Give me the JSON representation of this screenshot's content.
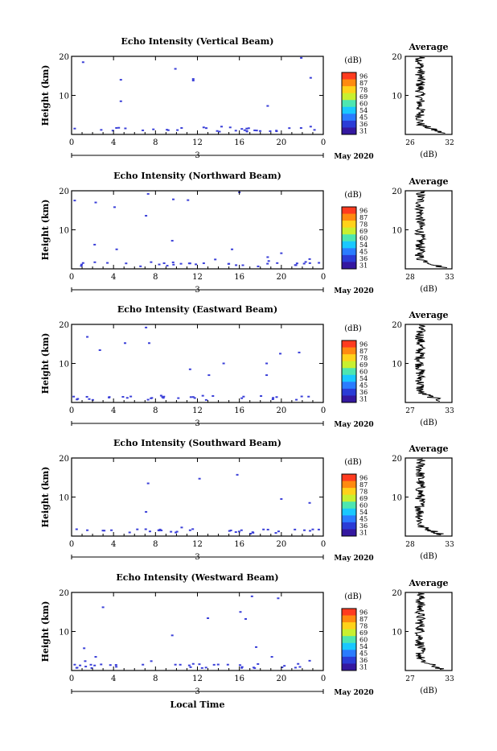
{
  "chart_data": {
    "type": "heatmap",
    "xlabel": "Local Time",
    "x_ticks": [
      "0",
      "4",
      "8",
      "12",
      "16",
      "20",
      "0"
    ],
    "xlim": [
      0,
      24
    ],
    "date_marker": "3",
    "month_label": "May 2020",
    "ylabel": "Height (km)",
    "y_ticks": [
      "10",
      "20"
    ],
    "ylim": [
      0,
      20
    ],
    "colorbar": {
      "unit": "(dB)",
      "ticks": [
        "96",
        "87",
        "78",
        "69",
        "60",
        "54",
        "45",
        "36",
        "31"
      ],
      "colors": [
        "#ff3b1f",
        "#ff8a10",
        "#ffd21a",
        "#c8f030",
        "#4de6b0",
        "#19c8ff",
        "#2a7cff",
        "#2a3cd6",
        "#3418a0"
      ]
    },
    "panels": [
      {
        "title": "Echo Intensity (Vertical Beam)",
        "avg_title": "Average",
        "avg_xlabel": "(dB)",
        "avg_ticks": [
          "26",
          "32"
        ],
        "avg_xlim": [
          26,
          32
        ],
        "echoes": [
          [
            0.3,
            1.5
          ],
          [
            1.1,
            18.5
          ],
          [
            4.5,
            1.7
          ],
          [
            4.7,
            14
          ],
          [
            4.7,
            8.5
          ],
          [
            7.8,
            1.3
          ],
          [
            9.9,
            16.8
          ],
          [
            11.6,
            14.2
          ],
          [
            11.6,
            13.8
          ],
          [
            12.6,
            1.8
          ],
          [
            14.3,
            2.0
          ],
          [
            16.7,
            1.5
          ],
          [
            18.7,
            7.3
          ],
          [
            21.9,
            19.6
          ],
          [
            22.8,
            14.5
          ],
          [
            22.8,
            2.0
          ]
        ]
      },
      {
        "title": "Echo Intensity (Northward Beam)",
        "avg_title": "Average",
        "avg_xlabel": "(dB)",
        "avg_ticks": [
          "28",
          "33"
        ],
        "avg_xlim": [
          28,
          33
        ],
        "echoes": [
          [
            0.3,
            17.5
          ],
          [
            1.1,
            1.5
          ],
          [
            2.2,
            6.2
          ],
          [
            2.3,
            17
          ],
          [
            4.1,
            15.8
          ],
          [
            4.3,
            5
          ],
          [
            5.2,
            1.4
          ],
          [
            7.1,
            13.6
          ],
          [
            7.3,
            19.2
          ],
          [
            9.6,
            7.2
          ],
          [
            9.7,
            17.8
          ],
          [
            11.1,
            17.6
          ],
          [
            11.3,
            1.4
          ],
          [
            13.7,
            2.4
          ],
          [
            15.3,
            5
          ],
          [
            16.0,
            19.6
          ],
          [
            18.7,
            3.0
          ],
          [
            18.8,
            2.0
          ],
          [
            20.0,
            4.0
          ],
          [
            21.5,
            1.4
          ],
          [
            22.7,
            2.5
          ]
        ]
      },
      {
        "title": "Echo Intensity (Eastward Beam)",
        "avg_title": "Average",
        "avg_xlabel": "(dB)",
        "avg_ticks": [
          "27",
          "33"
        ],
        "avg_xlim": [
          27,
          33
        ],
        "echoes": [
          [
            0.2,
            1.5
          ],
          [
            1.5,
            16.8
          ],
          [
            2.7,
            13.4
          ],
          [
            3.6,
            1.4
          ],
          [
            5.1,
            15.2
          ],
          [
            7.1,
            19.2
          ],
          [
            7.4,
            15.2
          ],
          [
            8.8,
            1.5
          ],
          [
            11.3,
            8.5
          ],
          [
            11.6,
            1.4
          ],
          [
            13.1,
            7.0
          ],
          [
            14.5,
            10.0
          ],
          [
            16.4,
            1.5
          ],
          [
            18.6,
            10.0
          ],
          [
            18.6,
            7.0
          ],
          [
            19.9,
            12.5
          ],
          [
            21.7,
            12.8
          ],
          [
            22.6,
            1.5
          ]
        ]
      },
      {
        "title": "Echo Intensity (Southward Beam)",
        "avg_title": "Average",
        "avg_xlabel": "(dB)",
        "avg_ticks": [
          "28",
          "33"
        ],
        "avg_xlim": [
          28,
          33
        ],
        "echoes": [
          [
            1.5,
            1.5
          ],
          [
            3.8,
            1.5
          ],
          [
            7.1,
            6.2
          ],
          [
            7.3,
            13.5
          ],
          [
            8.3,
            1.5
          ],
          [
            10.5,
            2.2
          ],
          [
            11.3,
            1.5
          ],
          [
            12.2,
            14.7
          ],
          [
            15.8,
            15.7
          ],
          [
            16.2,
            1.5
          ],
          [
            18.3,
            1.7
          ],
          [
            20.0,
            9.5
          ],
          [
            22.2,
            1.5
          ],
          [
            22.7,
            8.5
          ]
        ]
      },
      {
        "title": "Echo Intensity (Westward Beam)",
        "avg_title": "Average",
        "avg_xlabel": "(dB)",
        "avg_ticks": [
          "27",
          "33"
        ],
        "avg_xlim": [
          27,
          33
        ],
        "echoes": [
          [
            0.3,
            1.5
          ],
          [
            1.2,
            5.7
          ],
          [
            1.3,
            2.4
          ],
          [
            2.3,
            3.5
          ],
          [
            3.0,
            16.2
          ],
          [
            3.7,
            1.4
          ],
          [
            6.8,
            1.5
          ],
          [
            7.6,
            2.4
          ],
          [
            9.6,
            9.0
          ],
          [
            9.9,
            1.5
          ],
          [
            11.6,
            1.7
          ],
          [
            13.0,
            13.4
          ],
          [
            14.9,
            1.5
          ],
          [
            16.1,
            15.0
          ],
          [
            16.6,
            13.2
          ],
          [
            17.2,
            19.0
          ],
          [
            17.6,
            6.0
          ],
          [
            19.1,
            3.5
          ],
          [
            19.7,
            18.5
          ],
          [
            21.6,
            1.7
          ],
          [
            22.7,
            2.5
          ]
        ]
      }
    ]
  }
}
